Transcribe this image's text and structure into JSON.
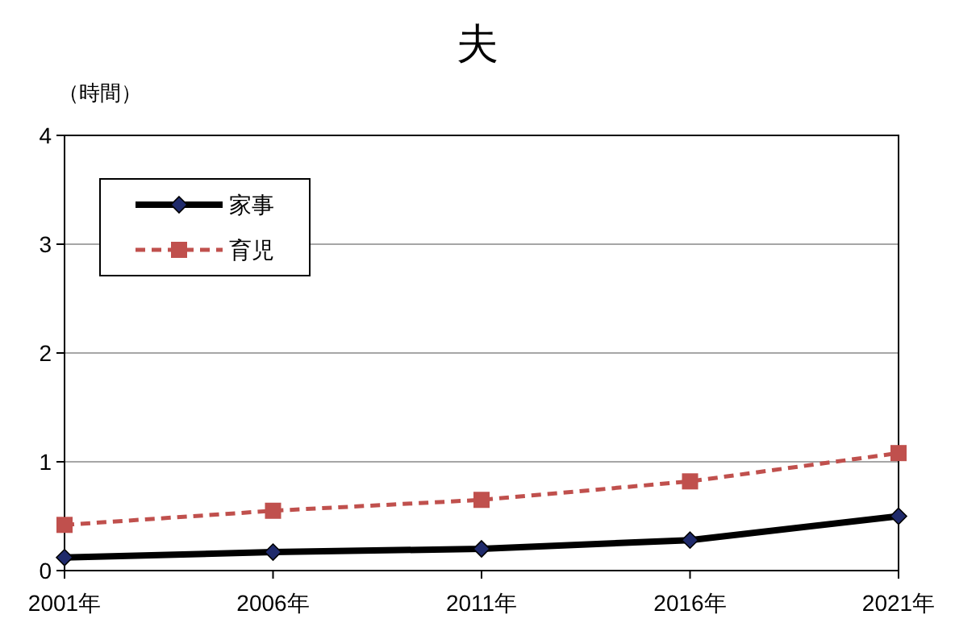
{
  "chart_data": {
    "type": "line",
    "title": "夫",
    "ylabel": "（時間）",
    "categories": [
      "2001年",
      "2006年",
      "2011年",
      "2016年",
      "2021年"
    ],
    "series": [
      {
        "name": "家事",
        "color": "#000000",
        "marker": "diamond",
        "line_style": "solid",
        "values": [
          0.12,
          0.17,
          0.2,
          0.28,
          0.5
        ]
      },
      {
        "name": "育児",
        "color": "#c0504d",
        "marker": "square",
        "line_style": "dashed",
        "values": [
          0.42,
          0.55,
          0.65,
          0.82,
          1.08
        ]
      }
    ],
    "ylim": [
      0,
      4
    ],
    "yticks": [
      0,
      1,
      2,
      3,
      4
    ],
    "grid": "y",
    "legend": "top left"
  }
}
